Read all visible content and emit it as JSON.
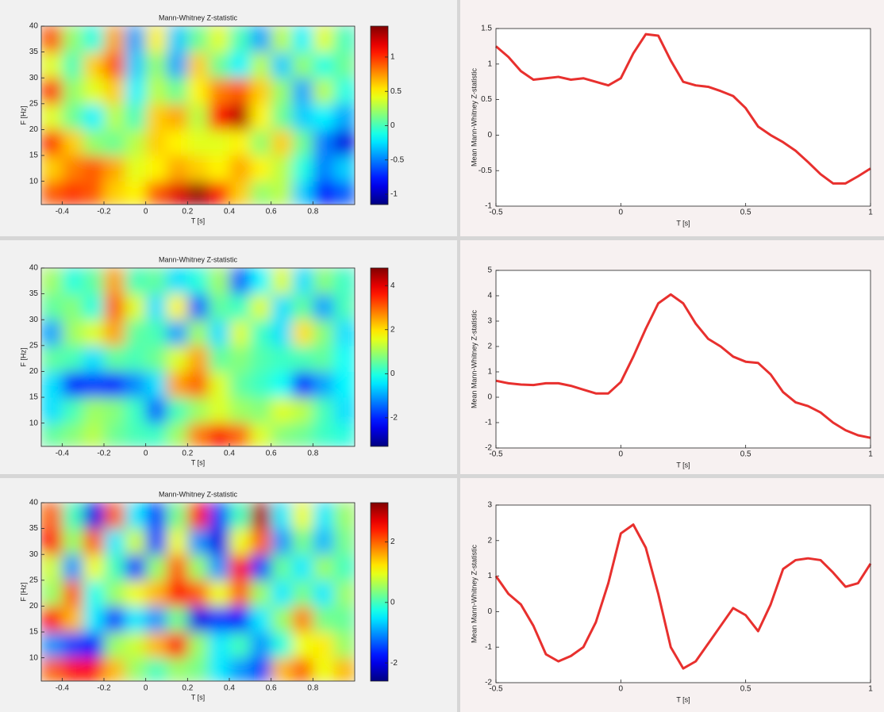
{
  "chart_data": [
    {
      "type": "heatmap",
      "title": "Mann-Whitney Z-statistic",
      "xlabel": "T [s]",
      "ylabel": "F [Hz]",
      "colormap": "jet",
      "xlim": [
        -0.5,
        1.0
      ],
      "ylim": [
        5.5,
        40
      ],
      "xticks": [
        -0.4,
        -0.2,
        0,
        0.2,
        0.4,
        0.6,
        0.8
      ],
      "yticks": [
        10,
        15,
        20,
        25,
        30,
        35,
        40
      ],
      "xbins": [
        -0.5,
        -0.4,
        -0.3,
        -0.2,
        -0.1,
        0,
        0.1,
        0.2,
        0.3,
        0.4,
        0.5,
        0.6,
        0.7,
        0.8,
        0.9,
        1.0
      ],
      "ybins": [
        5.5,
        10,
        15,
        20,
        25,
        30,
        35,
        40
      ],
      "z": [
        [
          0.9,
          1.0,
          0.9,
          0.6,
          0.5,
          0.9,
          1.2,
          1.4,
          1.1,
          0.6,
          0.2,
          0.3,
          -0.3,
          -0.8,
          -0.6
        ],
        [
          0.6,
          0.8,
          0.9,
          0.7,
          0.4,
          0.5,
          0.7,
          0.6,
          0.5,
          0.7,
          0.5,
          0.3,
          -0.1,
          -0.5,
          -0.3
        ],
        [
          1.0,
          0.6,
          0.2,
          0.1,
          0.3,
          0.6,
          0.5,
          0.4,
          0.4,
          0.5,
          0.2,
          0.6,
          0.1,
          -0.5,
          -0.9
        ],
        [
          0.4,
          0.1,
          -0.2,
          0.3,
          0.0,
          0.6,
          0.7,
          0.3,
          1.1,
          1.3,
          0.5,
          0.1,
          -0.3,
          -0.2,
          -0.4
        ],
        [
          1.0,
          0.2,
          0.4,
          0.6,
          -0.2,
          0.3,
          0.1,
          0.5,
          0.8,
          0.9,
          0.6,
          0.2,
          -0.4,
          0.3,
          -0.1
        ],
        [
          0.4,
          0.0,
          0.6,
          0.9,
          -0.3,
          0.2,
          -0.4,
          0.6,
          0.1,
          -0.2,
          0.3,
          -0.3,
          0.2,
          -0.1,
          0.1
        ],
        [
          0.9,
          0.2,
          -0.1,
          0.7,
          -0.4,
          0.5,
          -0.3,
          0.1,
          0.4,
          0.0,
          -0.4,
          0.3,
          -0.2,
          0.4,
          0.0
        ]
      ],
      "zlim": [
        -1.15,
        1.45
      ],
      "zticks": [
        -1,
        -0.5,
        0,
        0.5,
        1
      ]
    },
    {
      "type": "line",
      "xlabel": "T [s]",
      "ylabel": "Mean Mann-Whitney Z-statistic",
      "color": "#e8302e",
      "xlim": [
        -0.5,
        1
      ],
      "ylim": [
        -1,
        1.5
      ],
      "xticks": [
        -0.5,
        0,
        0.5,
        1
      ],
      "yticks": [
        -1,
        -0.5,
        0,
        0.5,
        1,
        1.5
      ],
      "x": [
        -0.5,
        -0.45,
        -0.4,
        -0.35,
        -0.3,
        -0.25,
        -0.2,
        -0.15,
        -0.1,
        -0.05,
        0,
        0.05,
        0.1,
        0.15,
        0.2,
        0.25,
        0.3,
        0.35,
        0.4,
        0.45,
        0.5,
        0.55,
        0.6,
        0.65,
        0.7,
        0.75,
        0.8,
        0.85,
        0.9,
        0.95,
        1.0
      ],
      "values": [
        1.25,
        1.1,
        0.9,
        0.78,
        0.8,
        0.82,
        0.78,
        0.8,
        0.75,
        0.7,
        0.8,
        1.15,
        1.42,
        1.4,
        1.05,
        0.75,
        0.7,
        0.68,
        0.62,
        0.55,
        0.38,
        0.12,
        0.0,
        -0.1,
        -0.22,
        -0.38,
        -0.55,
        -0.68,
        -0.68,
        -0.58,
        -0.47
      ]
    },
    {
      "type": "heatmap",
      "title": "Mann-Whitney Z-statistic",
      "xlabel": "T [s]",
      "ylabel": "F [Hz]",
      "colormap": "jet",
      "xlim": [
        -0.5,
        1.0
      ],
      "ylim": [
        5.5,
        40
      ],
      "xticks": [
        -0.4,
        -0.2,
        0,
        0.2,
        0.4,
        0.6,
        0.8
      ],
      "yticks": [
        10,
        15,
        20,
        25,
        30,
        35,
        40
      ],
      "xbins": [
        -0.5,
        -0.4,
        -0.3,
        -0.2,
        -0.1,
        0,
        0.1,
        0.2,
        0.3,
        0.4,
        0.5,
        0.6,
        0.7,
        0.8,
        0.9,
        1.0
      ],
      "ybins": [
        5.5,
        10,
        15,
        20,
        25,
        30,
        35,
        40
      ],
      "z": [
        [
          0.5,
          0.8,
          1.2,
          0.6,
          0.3,
          0.2,
          1.0,
          2.8,
          3.8,
          3.0,
          1.5,
          0.8,
          0.6,
          0.2,
          0.0
        ],
        [
          -0.5,
          0.3,
          1.0,
          0.8,
          0.2,
          -1.5,
          0.3,
          1.0,
          1.5,
          1.0,
          0.8,
          1.5,
          1.2,
          0.3,
          -0.5
        ],
        [
          -0.5,
          -2.0,
          -1.8,
          -2.0,
          -1.2,
          -0.5,
          2.5,
          3.0,
          1.5,
          0.5,
          0.2,
          -0.2,
          -2.0,
          -1.0,
          -0.3
        ],
        [
          0.5,
          0.3,
          -0.5,
          0.5,
          0.3,
          0.6,
          1.5,
          2.5,
          0.5,
          0.8,
          0.4,
          0.2,
          0.3,
          0.5,
          -0.2
        ],
        [
          -1.0,
          1.0,
          1.5,
          2.5,
          0.5,
          0.3,
          -1.0,
          1.0,
          -0.5,
          1.5,
          0.2,
          -0.5,
          2.0,
          0.8,
          -0.5
        ],
        [
          0.5,
          0.8,
          0.0,
          3.0,
          1.5,
          -0.5,
          1.8,
          -1.5,
          0.5,
          0.2,
          1.5,
          -0.5,
          0.5,
          -1.0,
          0.3
        ],
        [
          1.0,
          0.0,
          0.5,
          2.5,
          0.3,
          0.5,
          -0.5,
          0.0,
          1.0,
          -1.5,
          -0.3,
          1.5,
          -0.5,
          0.8,
          0.2
        ]
      ],
      "zlim": [
        -3.3,
        4.8
      ],
      "zticks": [
        -2,
        0,
        2,
        4
      ]
    },
    {
      "type": "line",
      "xlabel": "T [s]",
      "ylabel": "Mean Mann-Whitney Z-statistic",
      "color": "#e8302e",
      "xlim": [
        -0.5,
        1
      ],
      "ylim": [
        -2,
        5
      ],
      "xticks": [
        -0.5,
        0,
        0.5,
        1
      ],
      "yticks": [
        -2,
        -1,
        0,
        1,
        2,
        3,
        4,
        5
      ],
      "x": [
        -0.5,
        -0.45,
        -0.4,
        -0.35,
        -0.3,
        -0.25,
        -0.2,
        -0.15,
        -0.1,
        -0.05,
        0,
        0.05,
        0.1,
        0.15,
        0.2,
        0.25,
        0.3,
        0.35,
        0.4,
        0.45,
        0.5,
        0.55,
        0.6,
        0.65,
        0.7,
        0.75,
        0.8,
        0.85,
        0.9,
        0.95,
        1.0
      ],
      "values": [
        0.65,
        0.55,
        0.5,
        0.48,
        0.55,
        0.55,
        0.45,
        0.3,
        0.15,
        0.15,
        0.6,
        1.6,
        2.7,
        3.7,
        4.05,
        3.7,
        2.9,
        2.3,
        2.0,
        1.6,
        1.4,
        1.35,
        0.9,
        0.2,
        -0.2,
        -0.35,
        -0.6,
        -1.0,
        -1.3,
        -1.5,
        -1.6
      ]
    },
    {
      "type": "heatmap",
      "title": "Mann-Whitney Z-statistic",
      "xlabel": "T [s]",
      "ylabel": "F [Hz]",
      "colormap": "jet",
      "xlim": [
        -0.5,
        1.0
      ],
      "ylim": [
        5.5,
        40
      ],
      "xticks": [
        -0.4,
        -0.2,
        0,
        0.2,
        0.4,
        0.6,
        0.8
      ],
      "yticks": [
        10,
        15,
        20,
        25,
        30,
        35,
        40
      ],
      "xbins": [
        -0.5,
        -0.4,
        -0.3,
        -0.2,
        -0.1,
        0,
        0.1,
        0.2,
        0.3,
        0.4,
        0.5,
        0.6,
        0.7,
        0.8,
        0.9,
        1.0
      ],
      "ybins": [
        5.5,
        10,
        15,
        20,
        25,
        30,
        35,
        40
      ],
      "z": [
        [
          2.0,
          2.5,
          2.5,
          1.5,
          0.5,
          0.0,
          0.5,
          0.3,
          -0.5,
          -1.0,
          -1.5,
          1.5,
          2.0,
          1.0,
          1.5
        ],
        [
          -1.0,
          -1.5,
          -1.8,
          0.5,
          0.8,
          1.5,
          2.5,
          0.5,
          -0.5,
          0.0,
          -1.0,
          -0.2,
          1.0,
          1.2,
          0.5
        ],
        [
          2.5,
          1.5,
          -0.5,
          -1.5,
          -0.5,
          -1.0,
          0.3,
          -2.0,
          -1.5,
          -1.8,
          -0.5,
          0.5,
          1.8,
          0.3,
          0.2
        ],
        [
          0.5,
          2.0,
          -0.3,
          0.5,
          1.0,
          1.5,
          2.5,
          2.0,
          1.0,
          2.0,
          0.5,
          -0.5,
          0.3,
          -0.5,
          0.5
        ],
        [
          0.8,
          -1.0,
          1.0,
          0.0,
          -1.5,
          0.5,
          2.0,
          0.5,
          -1.0,
          2.5,
          -1.5,
          0.2,
          -0.5,
          0.5,
          0.0
        ],
        [
          2.5,
          0.5,
          2.0,
          -0.5,
          0.8,
          -1.5,
          1.0,
          -1.0,
          -2.0,
          1.0,
          2.0,
          -1.0,
          0.3,
          -0.8,
          0.3
        ],
        [
          2.0,
          0.0,
          -2.0,
          2.0,
          -0.5,
          -1.5,
          0.3,
          2.5,
          -1.5,
          0.0,
          3.0,
          -0.5,
          1.0,
          -0.5,
          0.5
        ]
      ],
      "zlim": [
        -2.6,
        3.3
      ],
      "zticks": [
        -2,
        0,
        2
      ]
    },
    {
      "type": "line",
      "xlabel": "T [s]",
      "ylabel": "Mean Mann-Whitney Z-statistic",
      "color": "#e8302e",
      "xlim": [
        -0.5,
        1
      ],
      "ylim": [
        -2,
        3
      ],
      "xticks": [
        -0.5,
        0,
        0.5,
        1
      ],
      "yticks": [
        -2,
        -1,
        0,
        1,
        2,
        3
      ],
      "x": [
        -0.5,
        -0.45,
        -0.4,
        -0.35,
        -0.3,
        -0.25,
        -0.2,
        -0.15,
        -0.1,
        -0.05,
        0,
        0.05,
        0.1,
        0.15,
        0.2,
        0.25,
        0.3,
        0.35,
        0.4,
        0.45,
        0.5,
        0.55,
        0.6,
        0.65,
        0.7,
        0.75,
        0.8,
        0.85,
        0.9,
        0.95,
        1.0
      ],
      "values": [
        1.0,
        0.5,
        0.2,
        -0.4,
        -1.2,
        -1.4,
        -1.25,
        -1.0,
        -0.3,
        0.8,
        2.2,
        2.45,
        1.8,
        0.5,
        -1.0,
        -1.6,
        -1.4,
        -0.9,
        -0.4,
        0.1,
        -0.1,
        -0.55,
        0.2,
        1.2,
        1.45,
        1.5,
        1.45,
        1.1,
        0.7,
        0.8,
        1.35
      ]
    }
  ]
}
